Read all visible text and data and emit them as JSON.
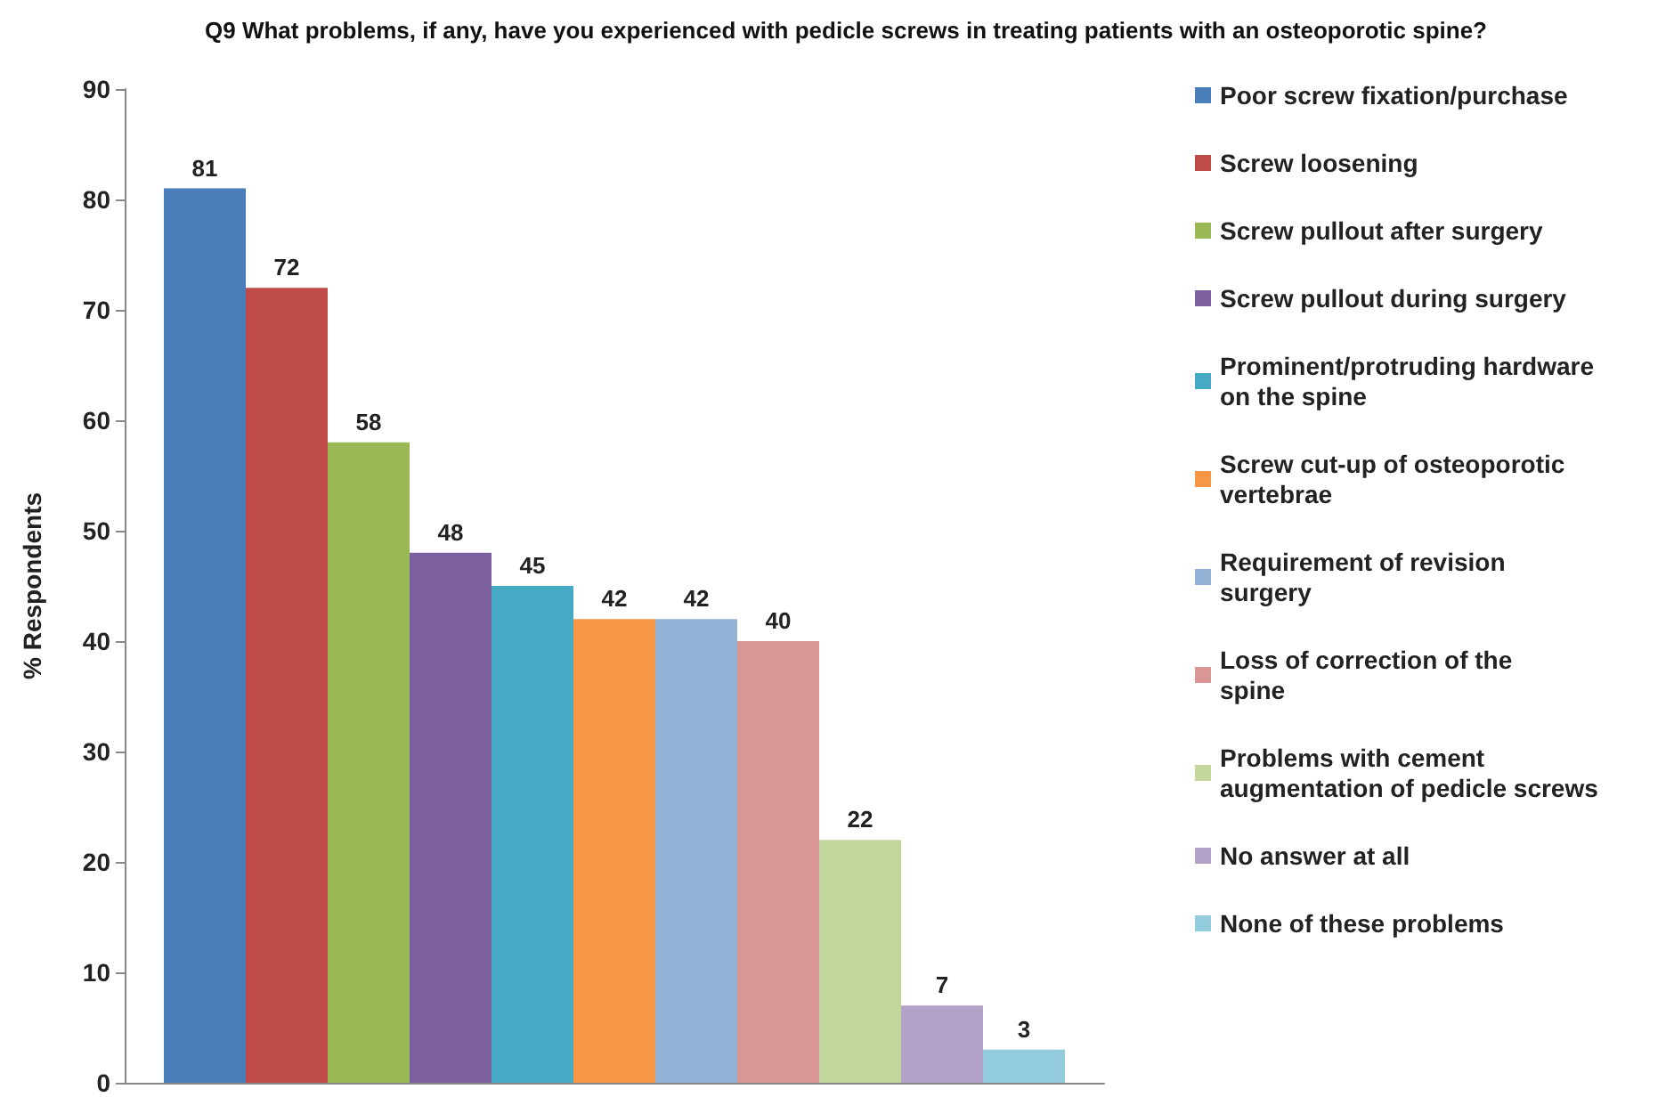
{
  "chart_data": {
    "type": "bar",
    "title": "Q9 What problems, if any, have you experienced with pedicle screws in treating patients with an osteoporotic spine?",
    "ylabel": "% Respondents",
    "categories": [
      null
    ],
    "series": [
      {
        "name": "Poor screw fixation/purchase",
        "color": "#4a7ebb",
        "values": [
          81
        ]
      },
      {
        "name": "Screw loosening",
        "color": "#be4b48",
        "values": [
          72
        ]
      },
      {
        "name": "Screw pullout after surgery",
        "color": "#98b954",
        "values": [
          58
        ]
      },
      {
        "name": "Screw pullout during surgery",
        "color": "#7d60a0",
        "values": [
          48
        ]
      },
      {
        "name": "Prominent/protruding hardware on the spine",
        "color": "#46aac5",
        "values": [
          45
        ]
      },
      {
        "name": "Screw cut-up of osteoporotic vertebrae",
        "color": "#f79646",
        "values": [
          42
        ]
      },
      {
        "name": "Requirement of revision surgery",
        "color": "#95b3d7",
        "values": [
          42
        ]
      },
      {
        "name": "Loss of correction of the spine",
        "color": "#d99694",
        "values": [
          40
        ]
      },
      {
        "name": "Problems with cement augmentation of pedicle screws",
        "color": "#c3d69b",
        "values": [
          22
        ]
      },
      {
        "name": "No answer at all",
        "color": "#b3a2c7",
        "values": [
          7
        ]
      },
      {
        "name": "None of these problems",
        "color": "#93cddd",
        "values": [
          3
        ]
      }
    ],
    "ylim": [
      0,
      90
    ],
    "yticks": [
      0,
      10,
      20,
      30,
      40,
      50,
      60,
      70,
      80,
      90
    ],
    "grid": false,
    "legend": "right",
    "data_labels": true
  }
}
